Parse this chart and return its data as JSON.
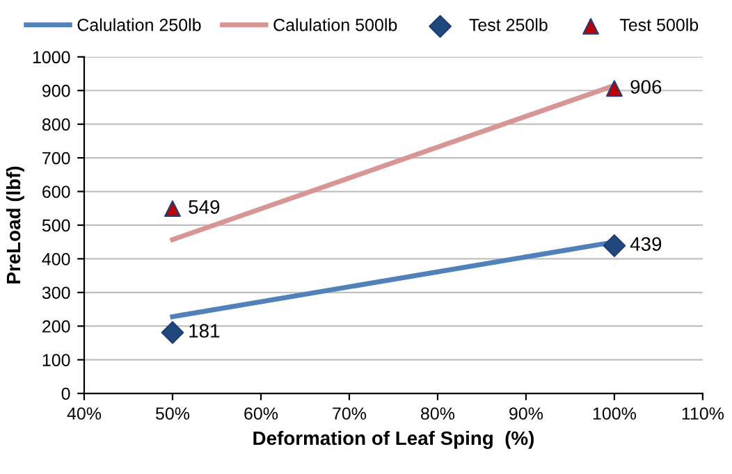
{
  "chart_data": {
    "type": "line",
    "xlabel": "Deformation of Leaf Sping  (%)",
    "ylabel": "PreLoad (lbf)",
    "x": [
      50,
      100
    ],
    "xlim": [
      40,
      110
    ],
    "xticks": [
      {
        "value": 40,
        "label": "40%"
      },
      {
        "value": 50,
        "label": "50%"
      },
      {
        "value": 60,
        "label": "60%"
      },
      {
        "value": 70,
        "label": "70%"
      },
      {
        "value": 80,
        "label": "80%"
      },
      {
        "value": 90,
        "label": "90%"
      },
      {
        "value": 100,
        "label": "100%"
      },
      {
        "value": 110,
        "label": "110%"
      }
    ],
    "ylim": [
      0,
      1000
    ],
    "yticks": [
      0,
      100,
      200,
      300,
      400,
      500,
      600,
      700,
      800,
      900,
      1000
    ],
    "grid": "y",
    "legend": "top",
    "series": [
      {
        "name": "Calulation 250lb",
        "color": "#4f81bd",
        "marker": "none",
        "values": [
          228,
          450
        ]
      },
      {
        "name": "Calulation 500lb",
        "color": "#d99594",
        "marker": "none",
        "values": [
          457,
          915
        ]
      },
      {
        "name": "Test 250lb",
        "type": "scatter",
        "color": "#1f497d",
        "marker": "diamond",
        "values": [
          181,
          439
        ],
        "value_labels": [
          "181",
          "439"
        ]
      },
      {
        "name": "Test 500lb",
        "type": "scatter",
        "color": "#c00000",
        "marker": "triangle",
        "values": [
          549,
          906
        ],
        "value_labels": [
          "549",
          "906"
        ]
      }
    ]
  }
}
